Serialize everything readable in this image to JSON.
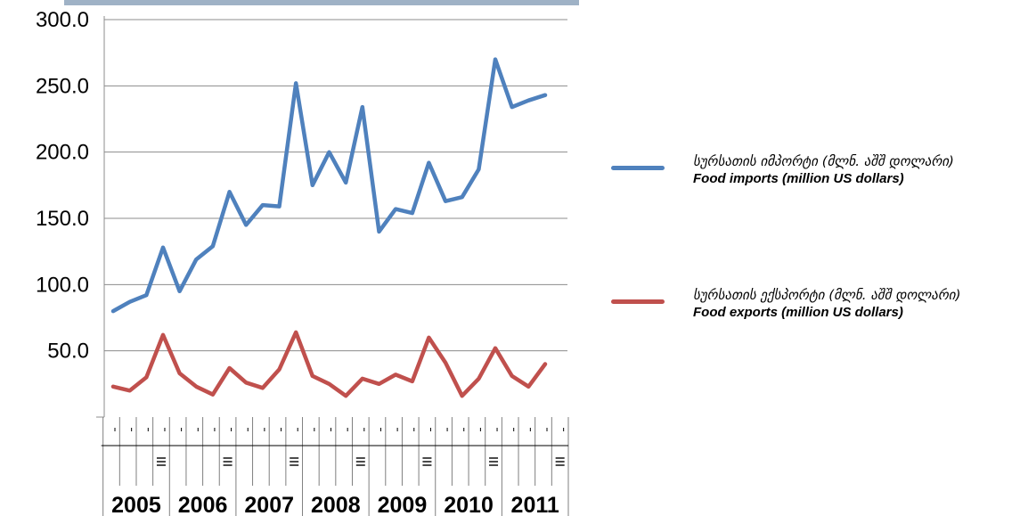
{
  "chart_data": {
    "type": "line",
    "title": "",
    "xlabel": "",
    "ylabel": "",
    "ylim": [
      0,
      300
    ],
    "yticks": [
      "50.0",
      "100.0",
      "150.0",
      "200.0",
      "250.0",
      "300.0"
    ],
    "years": [
      "2005",
      "2006",
      "2007",
      "2008",
      "2009",
      "2010",
      "2011"
    ],
    "quarters_per_year": 4,
    "legend_position": "right",
    "grid": true,
    "series": [
      {
        "name_ka": "სურსათის იმპორტი (მლნ. აშშ დოლარი)",
        "name_en": "Food imports (million US dollars)",
        "color": "#4F81BD",
        "values": [
          80,
          87,
          92,
          128,
          95,
          119,
          129,
          170,
          145,
          160,
          159,
          252,
          175,
          200,
          177,
          234,
          140,
          157,
          154,
          192,
          163,
          166,
          187,
          270,
          234,
          239,
          243
        ]
      },
      {
        "name_ka": "სურსათის ექსპორტი (მლნ. აშშ დოლარი)",
        "name_en": "Food exports (million US dollars)",
        "color": "#C0504D",
        "values": [
          23,
          20,
          30,
          62,
          33,
          23,
          17,
          37,
          26,
          22,
          36,
          64,
          31,
          25,
          16,
          29,
          25,
          32,
          27,
          60,
          41,
          16,
          29,
          52,
          31,
          23,
          40
        ]
      }
    ]
  }
}
